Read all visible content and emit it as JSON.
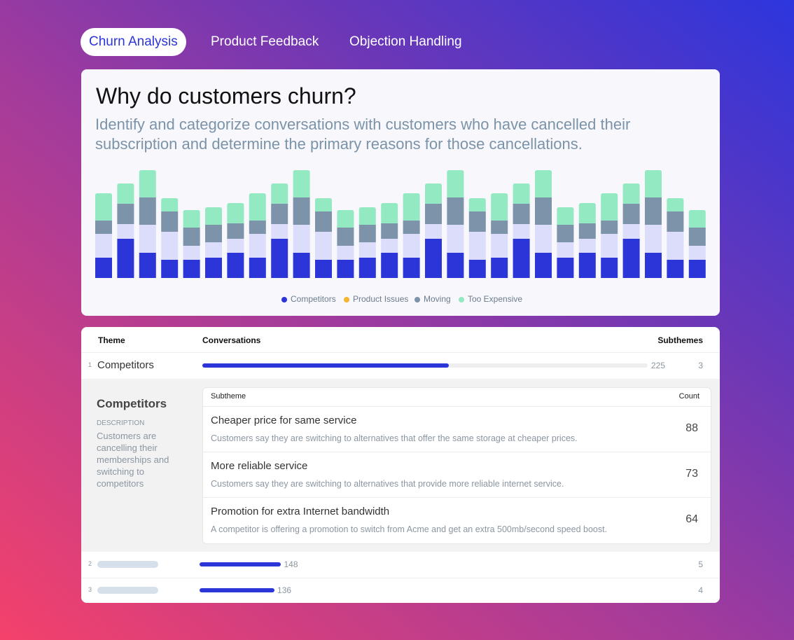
{
  "tabs": [
    "Churn Analysis",
    "Product Feedback",
    "Objection Handling"
  ],
  "active_tab": 0,
  "chart_data": {
    "type": "bar",
    "stacked": true,
    "title": "Why do customers churn?",
    "subtitle": "Identify and categorize conversations with customers who have cancelled their subscription and determine the primary reasons for those cancellations.",
    "categories": [
      null,
      null,
      null,
      null,
      null,
      null,
      null,
      null,
      null,
      null,
      null,
      null,
      null,
      null,
      null,
      null,
      null,
      null,
      null,
      null,
      null,
      null,
      null,
      null,
      null,
      null,
      null,
      null
    ],
    "series": [
      {
        "name": "Competitors",
        "color": "#2b35d8",
        "legend_color": "#2b35d8",
        "values": [
          29,
          56,
          36,
          26,
          26,
          29,
          36,
          29,
          56,
          36,
          26,
          26,
          29,
          36,
          29,
          56,
          36,
          26,
          29,
          56,
          36,
          29,
          36,
          29,
          56,
          36,
          26,
          26
        ]
      },
      {
        "name": "Product Issues",
        "color": "#dcdcfb",
        "legend_color": "#f5b52e",
        "values": [
          34,
          21,
          40,
          40,
          20,
          22,
          20,
          34,
          21,
          40,
          40,
          20,
          22,
          20,
          34,
          21,
          40,
          40,
          34,
          21,
          40,
          22,
          20,
          34,
          21,
          40,
          40,
          20
        ]
      },
      {
        "name": "Moving",
        "color": "#7d93aa",
        "legend_color": "#7d93aa",
        "values": [
          19,
          29,
          39,
          29,
          26,
          25,
          22,
          19,
          29,
          39,
          29,
          26,
          25,
          22,
          19,
          29,
          39,
          29,
          19,
          29,
          39,
          25,
          22,
          19,
          29,
          39,
          29,
          26
        ]
      },
      {
        "name": "Too Expensive",
        "color": "#93e9c1",
        "legend_color": "#93e9c1",
        "values": [
          39,
          29,
          39,
          19,
          25,
          25,
          29,
          39,
          29,
          39,
          19,
          25,
          25,
          29,
          39,
          29,
          39,
          19,
          39,
          29,
          39,
          25,
          29,
          39,
          29,
          39,
          19,
          25
        ]
      }
    ],
    "ylim": [
      0,
      154
    ],
    "legend": "bottom"
  },
  "table": {
    "columns": [
      "Theme",
      "Conversations",
      "Subthemes"
    ],
    "rows": [
      {
        "rank": 1,
        "theme": "Competitors",
        "conversations": 225,
        "subthemes": 3
      },
      {
        "rank": 2,
        "conversations": 148,
        "subthemes": 5
      },
      {
        "rank": 3,
        "conversations": 136,
        "subthemes": 4
      }
    ]
  },
  "detail": {
    "title": "Competitors",
    "description_label": "DESCRIPTION",
    "description": "Customers are cancelling their memberships and switching to competitors",
    "columns": [
      "Subtheme",
      "Count"
    ],
    "subthemes": [
      {
        "name": "Cheaper price for same service",
        "description": "Customers say they are switching to alternatives that offer the same storage at cheaper prices.",
        "count": 88
      },
      {
        "name": "More reliable service",
        "description": "Customers say they are switching to alternatives that provide more reliable internet service.",
        "count": 73
      },
      {
        "name": "Promotion for extra Internet bandwidth",
        "description": "A competitor is offering a promotion to switch from Acme and get an extra 500mb/second speed boost.",
        "count": 64
      }
    ]
  }
}
